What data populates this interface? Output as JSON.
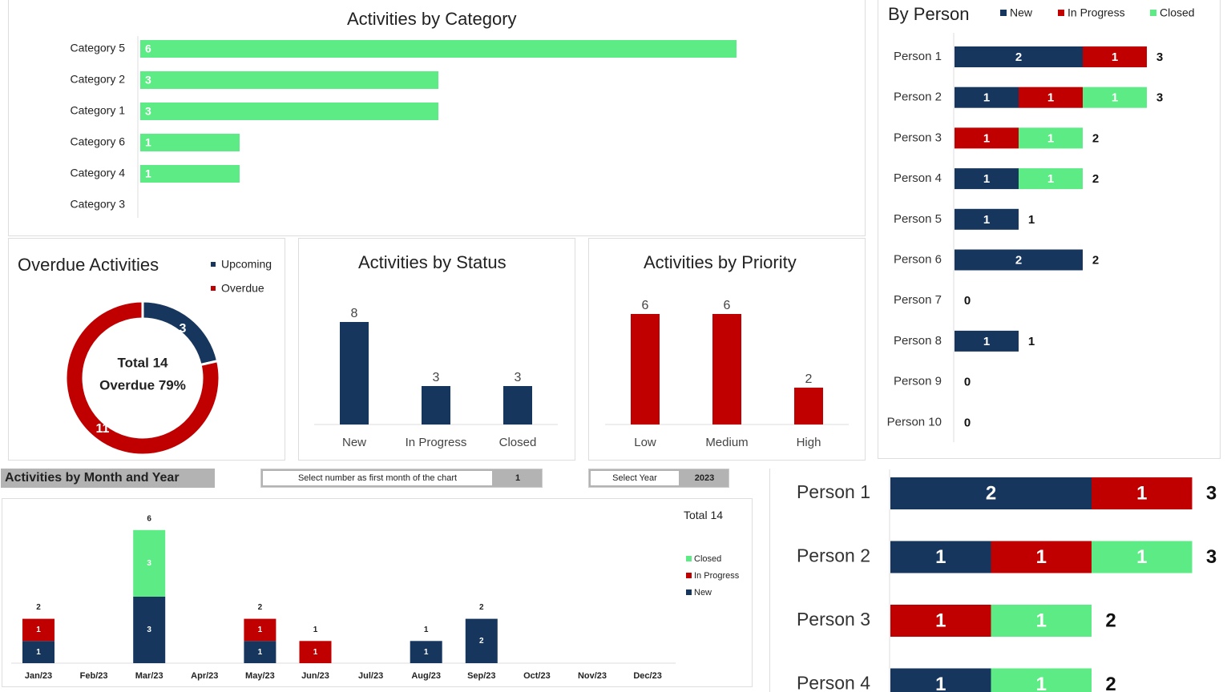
{
  "colors": {
    "new": "#17365d",
    "in_progress": "#c00000",
    "closed": "#5ceb84",
    "upcoming": "#17365d",
    "overdue": "#c00000"
  },
  "category": {
    "title": "Activities by Category",
    "chart_data": {
      "type": "bar",
      "orientation": "horizontal",
      "categories": [
        "Category 5",
        "Category 2",
        "Category 1",
        "Category 6",
        "Category 4",
        "Category 3"
      ],
      "values": [
        6,
        3,
        3,
        1,
        1,
        0
      ]
    }
  },
  "overdue": {
    "title": "Overdue Activities",
    "legend": [
      "Upcoming",
      "Overdue"
    ],
    "center_line1": "Total 14",
    "center_line2": "Overdue 79%",
    "chart_data": {
      "type": "pie",
      "donut": true,
      "categories": [
        "Upcoming",
        "Overdue"
      ],
      "values": [
        3,
        11
      ]
    }
  },
  "status": {
    "title": "Activities by Status",
    "chart_data": {
      "type": "bar",
      "categories": [
        "New",
        "In Progress",
        "Closed"
      ],
      "values": [
        8,
        3,
        3
      ]
    }
  },
  "priority": {
    "title": "Activities by Priority",
    "chart_data": {
      "type": "bar",
      "categories": [
        "Low",
        "Medium",
        "High"
      ],
      "values": [
        6,
        6,
        2
      ]
    }
  },
  "person": {
    "title": "By Person",
    "legend": [
      "New",
      "In Progress",
      "Closed"
    ],
    "chart_data": {
      "type": "bar",
      "stacked": true,
      "orientation": "horizontal",
      "categories": [
        "Person 1",
        "Person 2",
        "Person 3",
        "Person 4",
        "Person 5",
        "Person 6",
        "Person 7",
        "Person 8",
        "Person 9",
        "Person 10"
      ],
      "series": [
        {
          "name": "New",
          "values": [
            2,
            1,
            0,
            1,
            1,
            2,
            0,
            1,
            0,
            0
          ]
        },
        {
          "name": "In Progress",
          "values": [
            1,
            1,
            1,
            0,
            0,
            0,
            0,
            0,
            0,
            0
          ]
        },
        {
          "name": "Closed",
          "values": [
            0,
            1,
            1,
            1,
            0,
            0,
            0,
            0,
            0,
            0
          ]
        }
      ],
      "totals": [
        3,
        3,
        2,
        2,
        1,
        2,
        0,
        1,
        0,
        0
      ]
    }
  },
  "month": {
    "header": "Activities by Month and Year",
    "first_month_label": "Select number as first month of the chart",
    "first_month_value": "1",
    "year_label": "Select Year",
    "year_value": "2023",
    "total": "Total 14",
    "legend": [
      "Closed",
      "In Progress",
      "New"
    ],
    "chart_data": {
      "type": "bar",
      "stacked": true,
      "categories": [
        "Jan/23",
        "Feb/23",
        "Mar/23",
        "Apr/23",
        "May/23",
        "Jun/23",
        "Jul/23",
        "Aug/23",
        "Sep/23",
        "Oct/23",
        "Nov/23",
        "Dec/23"
      ],
      "series": [
        {
          "name": "New",
          "values": [
            1,
            0,
            3,
            0,
            1,
            0,
            0,
            1,
            2,
            0,
            0,
            0
          ]
        },
        {
          "name": "In Progress",
          "values": [
            1,
            0,
            0,
            0,
            1,
            1,
            0,
            0,
            0,
            0,
            0,
            0
          ]
        },
        {
          "name": "Closed",
          "values": [
            0,
            0,
            3,
            0,
            0,
            0,
            0,
            0,
            0,
            0,
            0,
            0
          ]
        }
      ],
      "totals": [
        2,
        0,
        6,
        0,
        2,
        1,
        0,
        1,
        2,
        0,
        0,
        0
      ]
    }
  }
}
